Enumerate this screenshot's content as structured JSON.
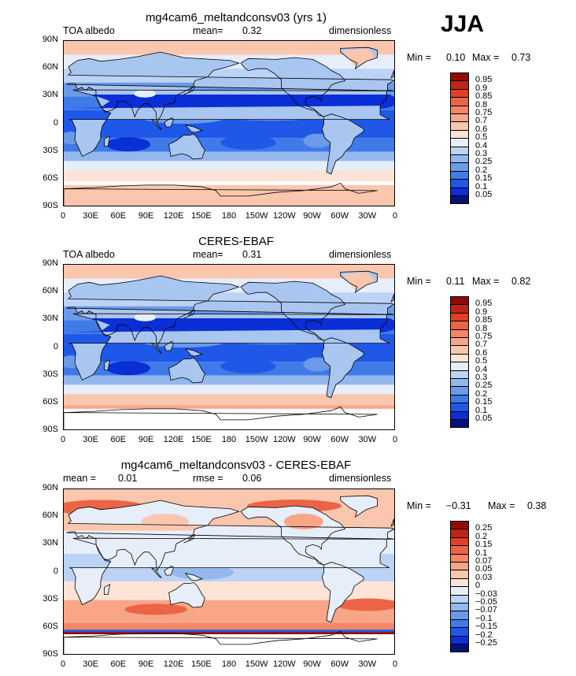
{
  "season": "JJA",
  "palette": {
    "full": [
      "#08107a",
      "#0a2fd6",
      "#1f58e8",
      "#3f7ae8",
      "#6a9ae8",
      "#94b8ee",
      "#bcd3f5",
      "#e6eefa",
      "#fde4d6",
      "#fbc6ae",
      "#f9a688",
      "#f48666",
      "#ec6446",
      "#de4128",
      "#c22414",
      "#8e0c07"
    ],
    "land": "#a9c6f0"
  },
  "panels": [
    {
      "title": "mg4cam6_meltandconsv03 (yrs 1)",
      "left_label": "TOA albedo",
      "stat_label": "mean=",
      "stat_value": "0.32",
      "units": "dimensionless",
      "min_label": "Min =",
      "min_value": "0.10",
      "max_label": "Max =",
      "max_value": "0.73",
      "colorbar": [
        "0.95",
        "0.9",
        "0.85",
        "0.8",
        "0.75",
        "0.7",
        "0.6",
        "0.5",
        "0.4",
        "0.3",
        "0.25",
        "0.2",
        "0.15",
        "0.1",
        "0.05"
      ]
    },
    {
      "title": "CERES-EBAF",
      "left_label": "TOA albedo",
      "stat_label": "mean=",
      "stat_value": "0.31",
      "units": "dimensionless",
      "min_label": "Min =",
      "min_value": "0.11",
      "max_label": "Max =",
      "max_value": "0.82",
      "colorbar": [
        "0.95",
        "0.9",
        "0.85",
        "0.8",
        "0.75",
        "0.7",
        "0.6",
        "0.5",
        "0.4",
        "0.3",
        "0.25",
        "0.2",
        "0.15",
        "0.1",
        "0.05"
      ]
    },
    {
      "title": "mg4cam6_meltandconsv03 - CERES-EBAF",
      "left_label": "mean =",
      "left_value": "0.01",
      "stat_label": "rmse =",
      "stat_value": "0.06",
      "units": "dimensionless",
      "min_label": "Min =",
      "min_value": "−0.31",
      "max_label": "Max =",
      "max_value": "0.38",
      "colorbar": [
        "0.25",
        "0.2",
        "0.15",
        "0.1",
        "0.07",
        "0.05",
        "0.03",
        "0",
        "−0.03",
        "−0.05",
        "−0.07",
        "−0.1",
        "−0.15",
        "−0.2",
        "−0.25"
      ]
    }
  ],
  "lat_ticks": [
    "90N",
    "60N",
    "30N",
    "0",
    "30S",
    "60S",
    "90S"
  ],
  "lon_ticks": [
    "0",
    "30E",
    "60E",
    "90E",
    "120E",
    "150E",
    "180",
    "150W",
    "120W",
    "90W",
    "60W",
    "30W",
    "0"
  ]
}
